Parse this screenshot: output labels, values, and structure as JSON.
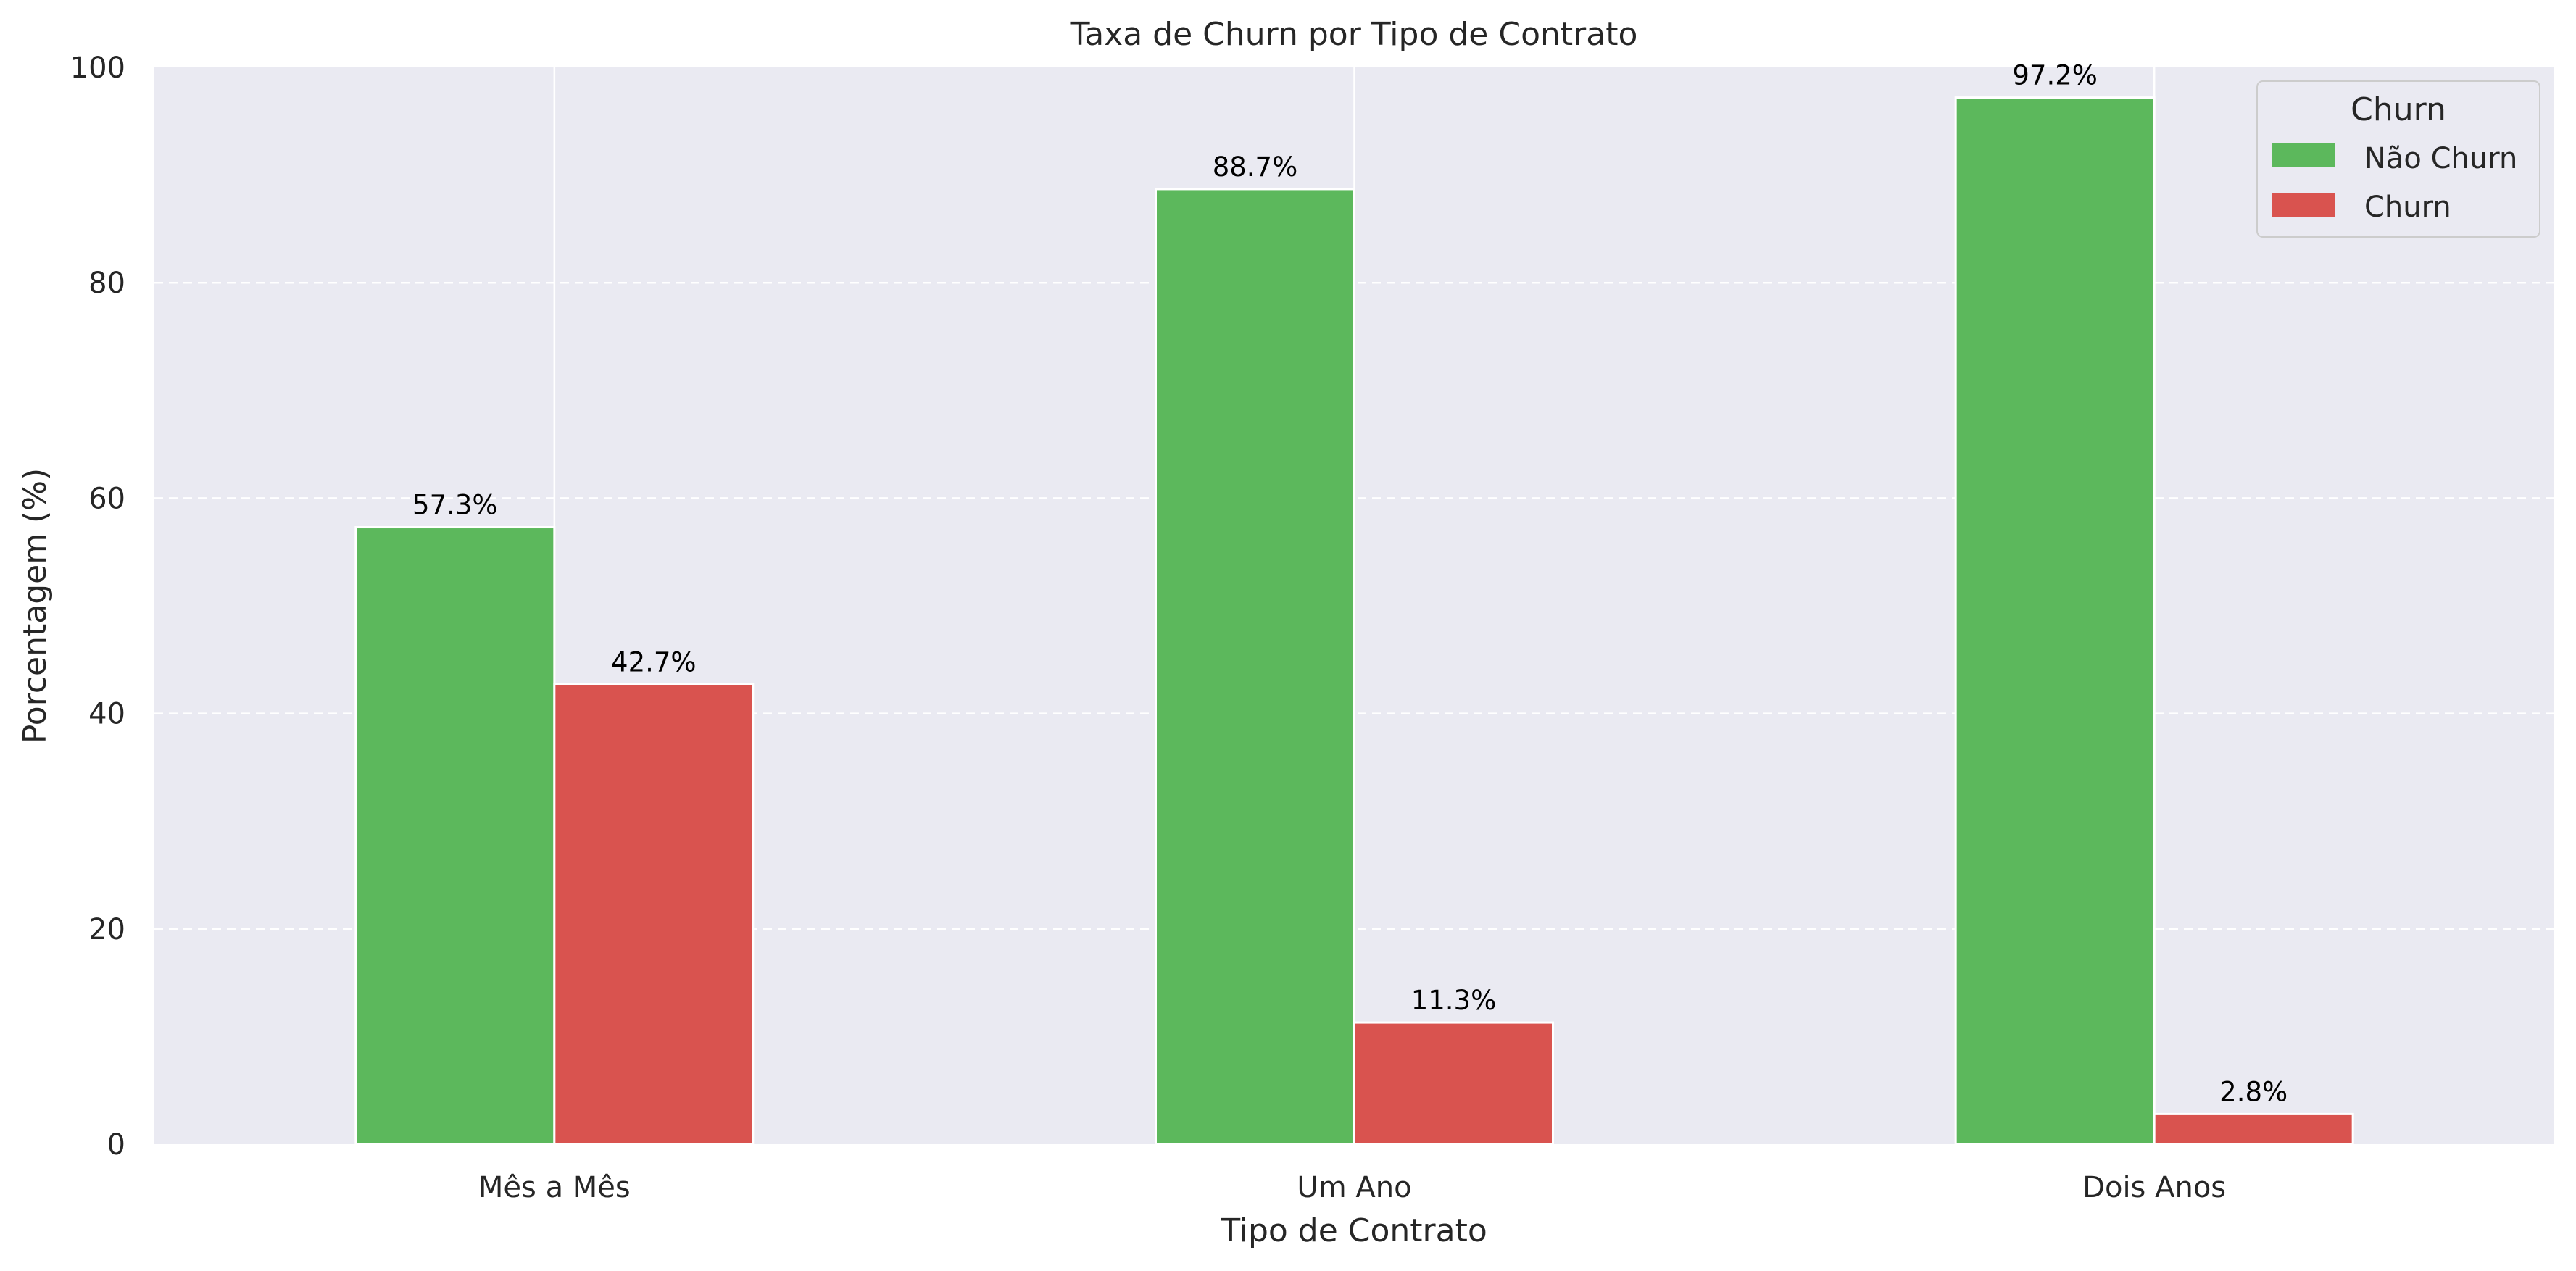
{
  "chart_data": {
    "type": "bar",
    "title": "Taxa de Churn por Tipo de Contrato",
    "xlabel": "Tipo de Contrato",
    "ylabel": "Porcentagem (%)",
    "categories": [
      "Mês a Mês",
      "Um Ano",
      "Dois Anos"
    ],
    "series": [
      {
        "name": "Não Churn",
        "values": [
          57.3,
          88.7,
          97.2
        ],
        "labels": [
          "57.3%",
          "88.7%",
          "97.2%"
        ],
        "color": "#5cb85c"
      },
      {
        "name": "Churn",
        "values": [
          42.7,
          11.3,
          2.8
        ],
        "labels": [
          "42.7%",
          "11.3%",
          "2.8%"
        ],
        "color": "#d9534f"
      }
    ],
    "ylim": [
      0,
      100
    ],
    "yticks": [
      0,
      20,
      40,
      60,
      80,
      100
    ],
    "grid": true,
    "legend": {
      "title": "Churn",
      "position": "top-right"
    },
    "background_color": "#eaeaf2"
  }
}
